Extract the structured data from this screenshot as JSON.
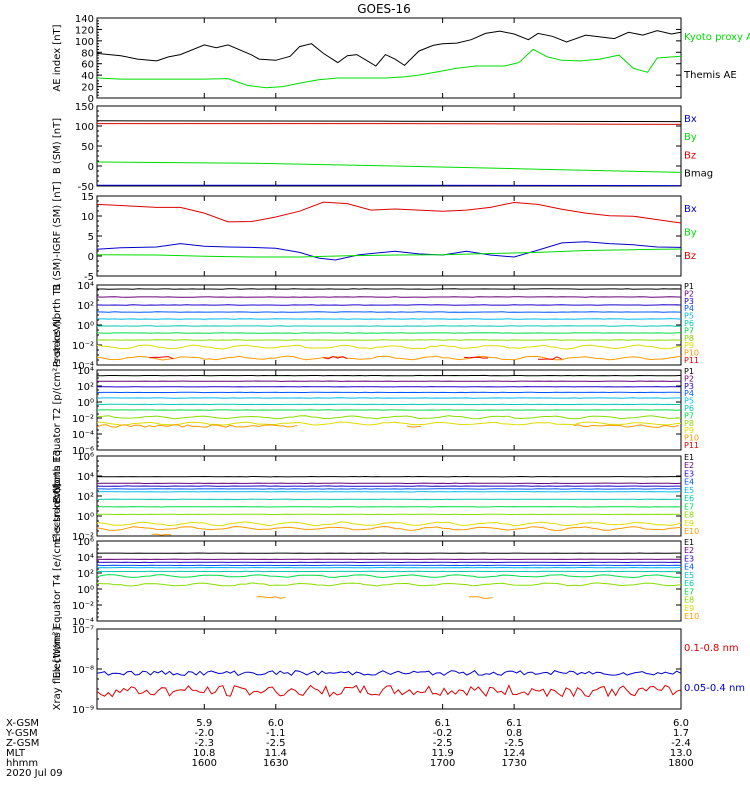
{
  "title": "GOES-16",
  "colors": {
    "black": "#000000",
    "green": "#00dd00",
    "blue": "#0000cc",
    "red": "#dd0000",
    "p": [
      "#000000",
      "#660077",
      "#2200cc",
      "#0055ff",
      "#00bbee",
      "#00ccaa",
      "#00dd44",
      "#88dd00",
      "#dddd00",
      "#ff9900",
      "#ee0000"
    ]
  },
  "chart_data": [
    {
      "type": "line",
      "ylabel": "AE index [nT]",
      "yticks": [
        "140",
        "120",
        "100",
        "80",
        "60",
        "40",
        "20",
        "0"
      ],
      "ylim": [
        0,
        140
      ],
      "legend": [
        {
          "label": "Kyoto proxy AE",
          "color": "#00dd00"
        },
        {
          "label": "Themis AE",
          "color": "#000000"
        }
      ],
      "series": [
        {
          "name": "Themis AE",
          "color": "#000000",
          "t": [
            1555,
            1565,
            1572,
            1580,
            1585,
            1590,
            1600,
            1605,
            1610,
            1620,
            1623,
            1630,
            1636,
            1640,
            1645,
            1650,
            1656,
            1660,
            1664,
            1668,
            1672,
            1676,
            1680,
            1684,
            1690,
            1696,
            1700,
            1706,
            1712,
            1718,
            1724,
            1730,
            1736,
            1740,
            1746,
            1752,
            1760,
            1766,
            1772,
            1778,
            1784,
            1790,
            1796,
            1800
          ],
          "y": [
            78,
            74,
            68,
            65,
            72,
            76,
            93,
            88,
            93,
            75,
            68,
            66,
            73,
            90,
            95,
            78,
            62,
            74,
            76,
            66,
            56,
            76,
            68,
            57,
            82,
            92,
            95,
            96,
            102,
            113,
            117,
            112,
            102,
            113,
            108,
            98,
            110,
            107,
            104,
            115,
            110,
            118,
            112,
            115
          ]
        },
        {
          "name": "Kyoto proxy AE",
          "color": "#00dd00",
          "t": [
            1555,
            1565,
            1578,
            1590,
            1600,
            1610,
            1618,
            1626,
            1633,
            1640,
            1648,
            1656,
            1666,
            1676,
            1684,
            1690,
            1698,
            1706,
            1714,
            1720,
            1726,
            1732,
            1738,
            1744,
            1750,
            1758,
            1766,
            1774,
            1780,
            1786,
            1790,
            1800
          ],
          "y": [
            35,
            33,
            33,
            33,
            33,
            34,
            22,
            18,
            20,
            26,
            32,
            35,
            35,
            35,
            37,
            40,
            46,
            52,
            56,
            56,
            56,
            62,
            85,
            72,
            66,
            65,
            68,
            75,
            52,
            45,
            70,
            73
          ]
        }
      ]
    },
    {
      "type": "line",
      "ylabel": "B (SM) [nT]",
      "yticks": [
        "150",
        "100",
        "50",
        "0",
        "-50"
      ],
      "ylim": [
        -50,
        150
      ],
      "legend": [
        {
          "label": "Bx",
          "color": "#0000cc"
        },
        {
          "label": "By",
          "color": "#00dd00"
        },
        {
          "label": "Bz",
          "color": "#dd0000"
        },
        {
          "label": "Bmag",
          "color": "#000000"
        }
      ],
      "series": [
        {
          "name": "Bmag",
          "color": "#000000",
          "t": [
            1555,
            1680,
            1800
          ],
          "y": [
            113,
            112,
            111
          ]
        },
        {
          "name": "Bz",
          "color": "#dd0000",
          "t": [
            1555,
            1680,
            1800
          ],
          "y": [
            106,
            106,
            104
          ]
        },
        {
          "name": "By",
          "color": "#00dd00",
          "t": [
            1555,
            1620,
            1680,
            1740,
            1800
          ],
          "y": [
            10,
            7,
            0,
            -8,
            -16
          ]
        },
        {
          "name": "Bx",
          "color": "#0000cc",
          "t": [
            1555,
            1680,
            1800
          ],
          "y": [
            -48,
            -48,
            -49
          ]
        }
      ]
    },
    {
      "type": "line",
      "ylabel": "B (SM)-IGRF (SM) [nT]",
      "yticks": [
        "15",
        "10",
        "5",
        "0",
        "-5"
      ],
      "ylim": [
        -5,
        16
      ],
      "legend": [
        {
          "label": "Bx",
          "color": "#0000cc"
        },
        {
          "label": "By",
          "color": "#00dd00"
        },
        {
          "label": "Bz",
          "color": "#dd0000"
        }
      ],
      "series": [
        {
          "name": "Bz",
          "color": "#dd0000",
          "t": [
            1555,
            1565,
            1580,
            1590,
            1600,
            1610,
            1620,
            1630,
            1640,
            1650,
            1660,
            1670,
            1680,
            1690,
            1700,
            1710,
            1720,
            1730,
            1740,
            1750,
            1760,
            1770,
            1780,
            1790,
            1800
          ],
          "y": [
            13.8,
            13.5,
            13,
            13,
            11.5,
            9.2,
            9.3,
            10.5,
            12,
            14.4,
            14,
            12.3,
            12.6,
            12.3,
            12,
            12.3,
            13,
            14.3,
            13.8,
            12.5,
            11.5,
            10.8,
            10.7,
            9.8,
            8.9
          ]
        },
        {
          "name": "Bx",
          "color": "#0000cc",
          "t": [
            1555,
            1565,
            1580,
            1590,
            1600,
            1610,
            1620,
            1630,
            1640,
            1648,
            1655,
            1665,
            1680,
            1690,
            1700,
            1710,
            1720,
            1730,
            1740,
            1750,
            1760,
            1770,
            1780,
            1790,
            1800
          ],
          "y": [
            2,
            2.4,
            2.6,
            3.5,
            2.8,
            2.6,
            2.5,
            2.3,
            1.2,
            -0.3,
            -0.8,
            0.6,
            1.5,
            0.8,
            0.5,
            1.5,
            0.5,
            0,
            1.8,
            3.7,
            4,
            3.5,
            3.2,
            2.6,
            2.5
          ]
        },
        {
          "name": "By",
          "color": "#00dd00",
          "t": [
            1555,
            1580,
            1600,
            1620,
            1640,
            1660,
            1680,
            1700,
            1720,
            1740,
            1760,
            1780,
            1800
          ],
          "y": [
            0.6,
            0.5,
            0.2,
            0,
            0,
            0.3,
            0.5,
            0.6,
            0.9,
            1.2,
            1.7,
            1.9,
            2.1
          ]
        }
      ]
    },
    {
      "type": "line",
      "ylabel": "Protons North T1",
      "yticks": [
        "10⁴",
        "10²",
        "10⁰",
        "10⁻²",
        "10⁻⁴"
      ],
      "ylim": [
        -4,
        4
      ],
      "log": true,
      "legend": [
        "P1",
        "P2",
        "P3",
        "P4",
        "P5",
        "P6",
        "P7",
        "P8",
        "P9",
        "P10",
        "P11"
      ],
      "levels": [
        3.6,
        2.8,
        2.0,
        1.3,
        0.6,
        -0.1,
        -0.8,
        -1.5,
        -2.2,
        -3.3
      ],
      "segments": [
        {
          "ch": 10,
          "t0": 1577,
          "t1": 1587,
          "y": -3.3
        },
        {
          "ch": 10,
          "t0": 1650,
          "t1": 1660,
          "y": -3.3
        },
        {
          "ch": 10,
          "t0": 1709,
          "t1": 1719,
          "y": -3.3
        },
        {
          "ch": 10,
          "t0": 1740,
          "t1": 1750,
          "y": -3.3
        }
      ]
    },
    {
      "type": "line",
      "ylabel": "Protons Equator T2 [p/(cm²-s-sr-keV)]",
      "yticks": [
        "10⁴",
        "10²",
        "10⁰",
        "10⁻²",
        "10⁻⁴",
        "10⁻⁶"
      ],
      "ylim": [
        -6,
        4
      ],
      "log": true,
      "legend": [
        "P1",
        "P2",
        "P3",
        "P4",
        "P5",
        "P6",
        "P7",
        "P8",
        "P9",
        "P10",
        "P11"
      ],
      "levels": [
        3.3,
        2.6,
        1.9,
        1.2,
        0.5,
        -0.3,
        -1.0,
        -1.9,
        -2.7
      ],
      "segments": [
        {
          "ch": 9,
          "t0": 1555,
          "t1": 1640,
          "y": -3.0
        },
        {
          "ch": 9,
          "t0": 1685,
          "t1": 1692,
          "y": -3.0
        },
        {
          "ch": 9,
          "t0": 1755,
          "t1": 1800,
          "y": -3.0
        }
      ]
    },
    {
      "type": "line",
      "ylabel": "Electrons North T3",
      "yticks": [
        "10⁶",
        "10⁴",
        "10²",
        "10⁰",
        "10⁻²"
      ],
      "ylim": [
        -2.5,
        6
      ],
      "log": true,
      "legend": [
        "E1",
        "E2",
        "E3",
        "E4",
        "E5",
        "E6",
        "E7",
        "E8",
        "E9",
        "E10"
      ],
      "levels": [
        3.8,
        3.1,
        2.8,
        2.5,
        2.2,
        1.4,
        0.6,
        -0.2,
        -1.2,
        -1.7
      ],
      "segments": [
        {
          "ch": 9,
          "t0": 1578,
          "t1": 1587,
          "y": -2.4
        }
      ]
    },
    {
      "type": "line",
      "ylabel": "Electrons Equator T4 [e/(cm²-s-sr-keV)]",
      "yticks": [
        "10⁶",
        "10⁴",
        "10²",
        "10⁰",
        "10⁻²",
        "10⁻⁴"
      ],
      "ylim": [
        -4.5,
        6
      ],
      "log": true,
      "legend": [
        "E1",
        "E2",
        "E3",
        "E4",
        "E5",
        "E6",
        "E7",
        "E8",
        "E9",
        "E10"
      ],
      "levels": [
        4.4,
        3.6,
        3.2,
        2.8,
        2.5,
        2.0,
        1.4,
        0.3
      ],
      "segments": [
        {
          "ch": 9,
          "t0": 1622,
          "t1": 1634,
          "y": -1.4
        },
        {
          "ch": 9,
          "t0": 1711,
          "t1": 1721,
          "y": -1.4
        }
      ]
    },
    {
      "type": "line",
      "ylabel": "Xray flux [W/m²]",
      "yticks": [
        "10⁻⁷",
        "10⁻⁸",
        "10⁻⁹"
      ],
      "ylim": [
        -9,
        -7
      ],
      "log": true,
      "legend": [
        {
          "label": "0.1-0.8 nm",
          "color": "#dd0000"
        },
        {
          "label": "0.05-0.4 nm",
          "color": "#0000cc"
        }
      ],
      "series": [
        {
          "name": "0.05-0.4 nm",
          "color": "#0000cc",
          "base": -8.1
        },
        {
          "name": "0.1-0.8 nm",
          "color": "#dd0000",
          "base": -8.55
        }
      ]
    }
  ],
  "time_axis": {
    "ticks": [
      "1600",
      "1630",
      "1700",
      "1730",
      "1800"
    ],
    "tmin": 1555,
    "tmax": 1800,
    "rows": [
      {
        "label": "X-GSM",
        "values": [
          "5.9",
          "6.0",
          "6.1",
          "6.1",
          "6.0"
        ]
      },
      {
        "label": "Y-GSM",
        "values": [
          "-2.0",
          "-1.1",
          "-0.2",
          "0.8",
          "1.7"
        ]
      },
      {
        "label": "Z-GSM",
        "values": [
          "-2.3",
          "-2.5",
          "-2.5",
          "-2.5",
          "-2.4"
        ]
      },
      {
        "label": "MLT",
        "values": [
          "10.8",
          "11.4",
          "11.9",
          "12.4",
          "13.0"
        ]
      },
      {
        "label": "hhmm",
        "values": [
          "1600",
          "1630",
          "1700",
          "1730",
          "1800"
        ]
      }
    ],
    "date": "2020 Jul 09"
  }
}
